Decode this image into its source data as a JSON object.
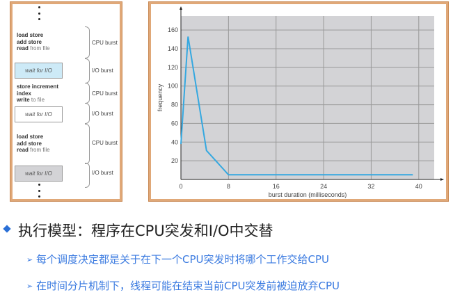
{
  "diagram": {
    "blocks": [
      {
        "type": "cpu",
        "lines": [
          [
            "load store",
            ""
          ],
          [
            "add store",
            ""
          ],
          [
            "read",
            "from file"
          ]
        ],
        "label": "CPU burst"
      },
      {
        "type": "io",
        "text": "wait for I/O",
        "fill": "#cdeaf7",
        "label": "I/O burst"
      },
      {
        "type": "cpu",
        "lines": [
          [
            "store increment",
            ""
          ],
          [
            "index",
            ""
          ],
          [
            "write",
            "to file"
          ]
        ],
        "label": "CPU burst"
      },
      {
        "type": "io",
        "text": "wait for I/O",
        "fill": "#ffffff",
        "label": "I/O burst"
      },
      {
        "type": "cpu",
        "lines": [
          [
            "load store",
            ""
          ],
          [
            "add store",
            ""
          ],
          [
            "read",
            "from file"
          ]
        ],
        "label": "CPU burst"
      },
      {
        "type": "io",
        "text": "wait for I/O",
        "fill": "#d3d3d6",
        "label": "I/O burst"
      }
    ]
  },
  "chart_data": {
    "type": "line",
    "xlabel": "burst duration (milliseconds)",
    "ylabel": "frequency",
    "xticks": [
      0,
      8,
      16,
      24,
      32,
      40
    ],
    "yticks": [
      20,
      40,
      60,
      80,
      100,
      120,
      140,
      160
    ],
    "xlim": [
      0,
      42.6
    ],
    "ylim": [
      0,
      175
    ],
    "grid": true,
    "plot_bg": "#d3d3d6",
    "line_color": "#35a8e0",
    "x": [
      0,
      1.2,
      4.3,
      8,
      39
    ],
    "y": [
      38,
      153,
      31,
      5,
      5
    ]
  },
  "text": {
    "main": "执行模型：程序在CPU突发和I/O中交替",
    "subs": [
      "每个调度决定都是关于在下一个CPU突发时将哪个工作交给CPU",
      "在时间分片机制下，线程可能在结束当前CPU突发前被迫放弃CPU"
    ],
    "arrow": "➢"
  }
}
